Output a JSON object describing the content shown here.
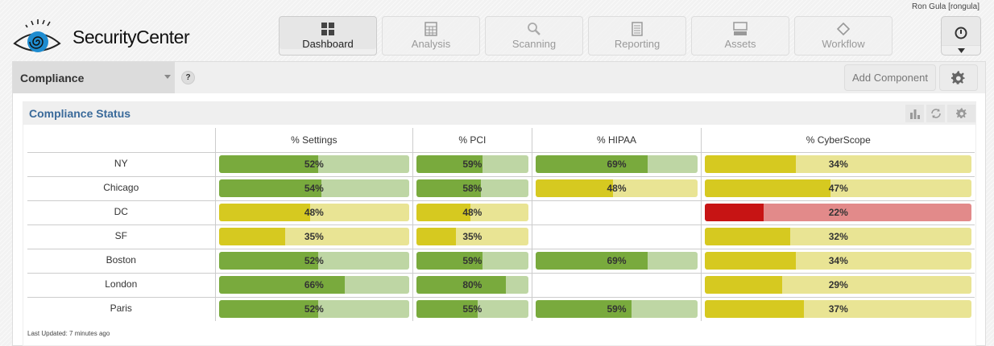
{
  "header": {
    "user": "Ron Gula [rongula]",
    "logo_text": "SecurityCenter",
    "nav": [
      {
        "label": "Dashboard",
        "icon": "grid-icon",
        "active": true
      },
      {
        "label": "Analysis",
        "icon": "table-icon",
        "active": false
      },
      {
        "label": "Scanning",
        "icon": "magnifier-icon",
        "active": false
      },
      {
        "label": "Reporting",
        "icon": "document-icon",
        "active": false
      },
      {
        "label": "Assets",
        "icon": "assets-icon",
        "active": false
      },
      {
        "label": "Workflow",
        "icon": "diamond-icon",
        "active": false
      }
    ]
  },
  "toolbar": {
    "dashboard_select": "Compliance",
    "help_label": "?",
    "add_component_label": "Add Component"
  },
  "component": {
    "title": "Compliance Status",
    "columns": [
      "",
      "% Settings",
      "% PCI",
      "% HIPAA",
      "% CyberScope"
    ],
    "rows": [
      {
        "name": "NY",
        "cells": [
          {
            "v": 52,
            "c": "green"
          },
          {
            "v": 59,
            "c": "green"
          },
          {
            "v": 69,
            "c": "green"
          },
          {
            "v": 34,
            "c": "yellow"
          }
        ]
      },
      {
        "name": "Chicago",
        "cells": [
          {
            "v": 54,
            "c": "green"
          },
          {
            "v": 58,
            "c": "green"
          },
          {
            "v": 48,
            "c": "yellow"
          },
          {
            "v": 47,
            "c": "yellow"
          }
        ]
      },
      {
        "name": "DC",
        "cells": [
          {
            "v": 48,
            "c": "yellow"
          },
          {
            "v": 48,
            "c": "yellow"
          },
          null,
          {
            "v": 22,
            "c": "red"
          }
        ]
      },
      {
        "name": "SF",
        "cells": [
          {
            "v": 35,
            "c": "yellow"
          },
          {
            "v": 35,
            "c": "yellow"
          },
          null,
          {
            "v": 32,
            "c": "yellow"
          }
        ]
      },
      {
        "name": "Boston",
        "cells": [
          {
            "v": 52,
            "c": "green"
          },
          {
            "v": 59,
            "c": "green"
          },
          {
            "v": 69,
            "c": "green"
          },
          {
            "v": 34,
            "c": "yellow"
          }
        ]
      },
      {
        "name": "London",
        "cells": [
          {
            "v": 66,
            "c": "green"
          },
          {
            "v": 80,
            "c": "green"
          },
          null,
          {
            "v": 29,
            "c": "yellow"
          }
        ]
      },
      {
        "name": "Paris",
        "cells": [
          {
            "v": 52,
            "c": "green"
          },
          {
            "v": 55,
            "c": "green"
          },
          {
            "v": 59,
            "c": "green"
          },
          {
            "v": 37,
            "c": "yellow"
          }
        ]
      }
    ],
    "last_updated": "Last Updated: 7 minutes ago"
  },
  "colors": {
    "green_fill": "#79aa3d",
    "green_bg": "#bed6a4",
    "yellow_fill": "#d6c920",
    "yellow_bg": "#e9e494",
    "red_fill": "#c71414",
    "red_bg": "#e28a8a",
    "title_blue": "#3a6a9a"
  }
}
